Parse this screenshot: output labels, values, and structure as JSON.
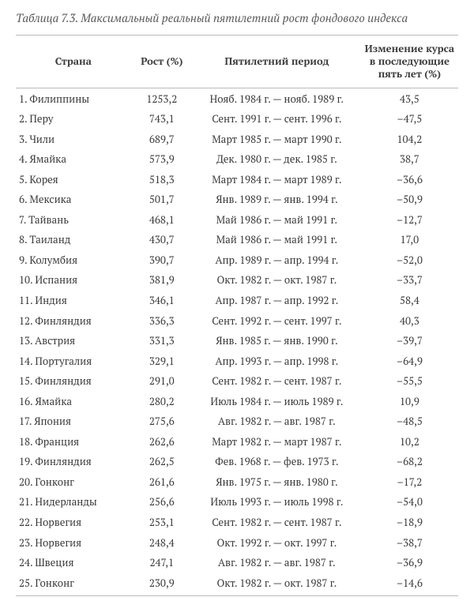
{
  "caption_label": "Таблица 7.3.",
  "caption_text": "Максимальный реальный пятилетний рост фондового индекса",
  "columns": {
    "country": "Страна",
    "growth": "Рост (%)",
    "period": "Пятилетний период",
    "change": "Изменение курса в последующие пять лет (%)"
  },
  "rows": [
    {
      "n": "1.",
      "country": "Филиппины",
      "growth": "1253,2",
      "period": "Нояб. 1984 г. — нояб. 1989 г.",
      "change": "43,5"
    },
    {
      "n": "2.",
      "country": "Перу",
      "growth": "743,1",
      "period": "Сент. 1991 г. — сент. 1996 г.",
      "change": "–47,5"
    },
    {
      "n": "3.",
      "country": "Чили",
      "growth": "689,7",
      "period": "Март 1985 г. — март 1990 г.",
      "change": "104,2"
    },
    {
      "n": "4.",
      "country": "Ямайка",
      "growth": "573,9",
      "period": "Дек. 1980 г. — дек. 1985 г.",
      "change": "38,7"
    },
    {
      "n": "5.",
      "country": "Корея",
      "growth": "518,3",
      "period": "Март 1984 г. — март 1989 г.",
      "change": "–36,6"
    },
    {
      "n": "6.",
      "country": "Мексика",
      "growth": "501,7",
      "period": "Янв. 1989 г. — янв. 1994 г.",
      "change": "–50,9"
    },
    {
      "n": "7.",
      "country": "Тайвань",
      "growth": "468,1",
      "period": "Май 1986 г. — май 1991 г.",
      "change": "–12,7"
    },
    {
      "n": "8.",
      "country": "Таиланд",
      "growth": "430,7",
      "period": "Май 1986 г. — май 1991 г.",
      "change": "17,0"
    },
    {
      "n": "9.",
      "country": "Колумбия",
      "growth": "390,7",
      "period": "Апр. 1989 г. — апр. 1994 г.",
      "change": "–52,0"
    },
    {
      "n": "10.",
      "country": "Испания",
      "growth": "381,9",
      "period": "Окт. 1982 г. — окт. 1987 г.",
      "change": "–33,7"
    },
    {
      "n": "11.",
      "country": "Индия",
      "growth": "346,1",
      "period": "Апр. 1987 г. — апр. 1992 г.",
      "change": "58,4"
    },
    {
      "n": "12.",
      "country": "Финляндия",
      "growth": "336,3",
      "period": "Сент. 1992 г. — сент. 1997 г.",
      "change": "40,3"
    },
    {
      "n": "13.",
      "country": "Австрия",
      "growth": "331,3",
      "period": "Янв. 1985 г. — янв. 1990 г.",
      "change": "–39,7"
    },
    {
      "n": "14.",
      "country": "Португалия",
      "growth": "329,1",
      "period": "Апр. 1993 г. — апр. 1998 г.",
      "change": "–64,9"
    },
    {
      "n": "15.",
      "country": "Финляндия",
      "growth": "291,0",
      "period": "Сент. 1982 г. — сент. 1987 г.",
      "change": "–55,5"
    },
    {
      "n": "16.",
      "country": "Ямайка",
      "growth": "280,2",
      "period": "Июль 1984 г. — июль 1989 г.",
      "change": "10,9"
    },
    {
      "n": "17.",
      "country": "Япония",
      "growth": "275,6",
      "period": "Авг. 1982 г. — авг. 1987 г.",
      "change": "–48,5"
    },
    {
      "n": "18.",
      "country": "Франция",
      "growth": "262,6",
      "period": "Март 1982 г. — март 1987 г.",
      "change": "10,2"
    },
    {
      "n": "19.",
      "country": "Финляндия",
      "growth": "262,5",
      "period": "Фев. 1968 г. — фев. 1973 г.",
      "change": "–68,2"
    },
    {
      "n": "20.",
      "country": "Гонконг",
      "growth": "261,6",
      "period": "Янв. 1975 г. — янв. 1980 г.",
      "change": "–17,2"
    },
    {
      "n": "21.",
      "country": "Нидерланды",
      "growth": "256,6",
      "period": "Июль 1993 г. — июль 1998 г.",
      "change": "–54,0"
    },
    {
      "n": "22.",
      "country": "Норвегия",
      "growth": "253,1",
      "period": "Сент. 1982 г. — сент. 1987 г.",
      "change": "–18,9"
    },
    {
      "n": "23.",
      "country": "Норвегия",
      "growth": "248,4",
      "period": "Окт. 1992 г. — окт. 1997 г.",
      "change": "–38,7"
    },
    {
      "n": "24.",
      "country": "Швеция",
      "growth": "247,1",
      "period": "Авг. 1982 г. — авг. 1987 г.",
      "change": "–36,9"
    },
    {
      "n": "25.",
      "country": "Гонконг",
      "growth": "230,9",
      "period": "Окт. 1982 г. — окт. 1987 г.",
      "change": "–14,6"
    }
  ],
  "style": {
    "font_family": "PT Serif, Georgia, Times New Roman, serif",
    "text_color": "#3a3a3a",
    "caption_color": "#595959",
    "rule_color": "#b9b9b9",
    "header_fontsize_pt": 10,
    "body_fontsize_pt": 10,
    "col_widths_pct": [
      26,
      14,
      38,
      22
    ],
    "background": "#ffffff"
  }
}
